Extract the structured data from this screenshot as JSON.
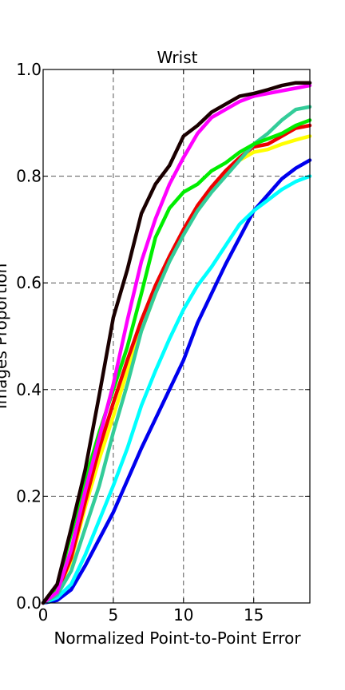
{
  "chart_data": {
    "type": "line",
    "title": "Wrist",
    "xlabel": "Normalized Point-to-Point Error",
    "ylabel": "Images Proportion",
    "xlim": [
      0,
      19
    ],
    "ylim": [
      0,
      1.0
    ],
    "xticks": [
      0,
      5,
      10,
      15
    ],
    "yticks": [
      0.0,
      0.2,
      0.4,
      0.6,
      0.8,
      1.0
    ],
    "xtick_labels": [
      "0",
      "5",
      "10",
      "15"
    ],
    "ytick_labels": [
      "0.0",
      "0.2",
      "0.4",
      "0.6",
      "0.8",
      "1.0"
    ],
    "grid": true,
    "x": [
      0,
      1,
      2,
      3,
      4,
      5,
      6,
      7,
      8,
      9,
      10,
      11,
      12,
      13,
      14,
      15,
      16,
      17,
      18,
      19
    ],
    "series": [
      {
        "color": "#0000ee",
        "values": [
          0.0,
          0.005,
          0.025,
          0.07,
          0.12,
          0.17,
          0.23,
          0.29,
          0.345,
          0.4,
          0.455,
          0.525,
          0.58,
          0.635,
          0.685,
          0.735,
          0.765,
          0.795,
          0.815,
          0.83
        ]
      },
      {
        "color": "#00ffff",
        "values": [
          0.0,
          0.01,
          0.035,
          0.09,
          0.155,
          0.22,
          0.29,
          0.37,
          0.435,
          0.495,
          0.55,
          0.595,
          0.63,
          0.67,
          0.71,
          0.735,
          0.755,
          0.775,
          0.79,
          0.8
        ]
      },
      {
        "color": "#ffff00",
        "values": [
          0.0,
          0.02,
          0.08,
          0.18,
          0.27,
          0.35,
          0.435,
          0.51,
          0.58,
          0.645,
          0.695,
          0.74,
          0.775,
          0.81,
          0.83,
          0.845,
          0.85,
          0.86,
          0.868,
          0.875
        ]
      },
      {
        "color": "#ee0000",
        "values": [
          0.0,
          0.02,
          0.085,
          0.19,
          0.29,
          0.375,
          0.455,
          0.53,
          0.595,
          0.65,
          0.7,
          0.745,
          0.78,
          0.81,
          0.835,
          0.855,
          0.86,
          0.875,
          0.89,
          0.895
        ]
      },
      {
        "color": "#33cc99",
        "values": [
          0.0,
          0.015,
          0.06,
          0.14,
          0.22,
          0.32,
          0.41,
          0.51,
          0.58,
          0.64,
          0.69,
          0.735,
          0.77,
          0.8,
          0.83,
          0.86,
          0.88,
          0.905,
          0.925,
          0.93
        ]
      },
      {
        "color": "#00ee00",
        "values": [
          0.0,
          0.03,
          0.13,
          0.23,
          0.32,
          0.4,
          0.48,
          0.58,
          0.685,
          0.74,
          0.77,
          0.785,
          0.81,
          0.825,
          0.845,
          0.86,
          0.87,
          0.88,
          0.895,
          0.905
        ]
      },
      {
        "color": "#ff00ff",
        "values": [
          0.0,
          0.02,
          0.1,
          0.21,
          0.31,
          0.41,
          0.53,
          0.64,
          0.72,
          0.785,
          0.835,
          0.88,
          0.91,
          0.925,
          0.94,
          0.95,
          0.955,
          0.96,
          0.965,
          0.97
        ]
      },
      {
        "color": "#1a0000",
        "values": [
          0.0,
          0.035,
          0.14,
          0.25,
          0.39,
          0.535,
          0.625,
          0.73,
          0.785,
          0.82,
          0.875,
          0.895,
          0.92,
          0.935,
          0.95,
          0.955,
          0.962,
          0.97,
          0.975,
          0.975
        ]
      }
    ]
  }
}
